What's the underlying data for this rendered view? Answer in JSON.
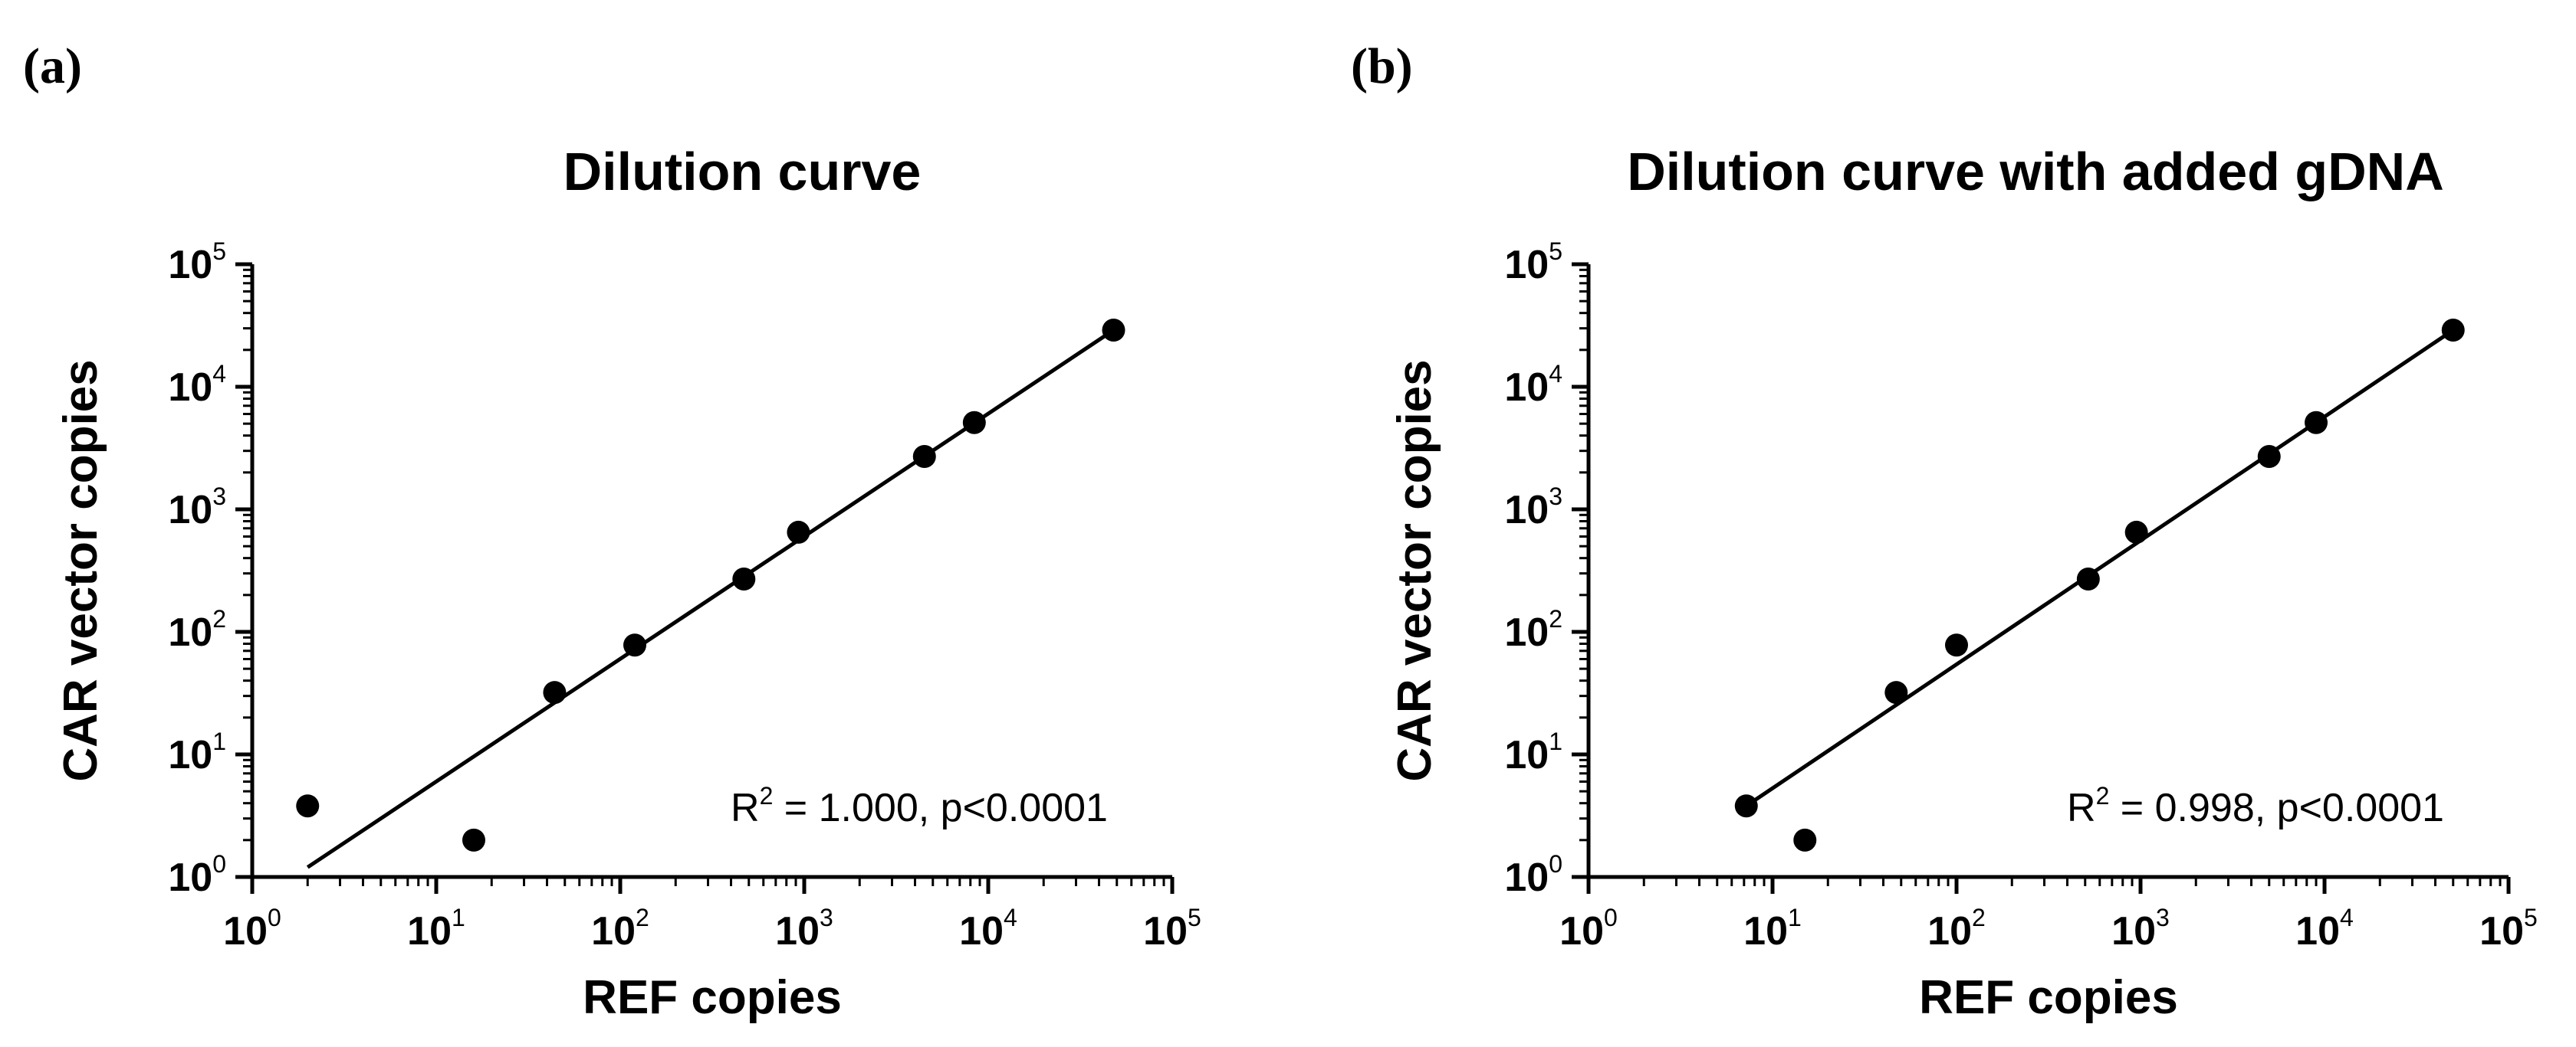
{
  "panels": [
    {
      "label": "(a)"
    },
    {
      "label": "(b)"
    }
  ],
  "chart_data": [
    {
      "type": "scatter",
      "title": "Dilution curve",
      "xlabel": "REF copies",
      "ylabel": "CAR vector copies",
      "xscale": "log10",
      "yscale": "log10",
      "xlim": [
        1,
        100000
      ],
      "ylim": [
        1,
        100000
      ],
      "tick_base": "10",
      "x_tick_exponents": [
        "0",
        "1",
        "2",
        "3",
        "4",
        "5"
      ],
      "y_tick_exponents": [
        "0",
        "1",
        "2",
        "3",
        "4",
        "5"
      ],
      "points": {
        "x": [
          2,
          16,
          44,
          120,
          470,
          930,
          4500,
          8400,
          48000
        ],
        "y": [
          3.8,
          2,
          32,
          78,
          270,
          650,
          2700,
          5100,
          29000
        ]
      },
      "fit_line": {
        "x": [
          2,
          48000
        ],
        "y": [
          1.2,
          29000
        ]
      },
      "annotation": {
        "pre": "R",
        "sup": "2",
        "post": " = 1.000, p<0.0001"
      }
    },
    {
      "type": "scatter",
      "title": "Dilution curve with added gDNA",
      "xlabel": "REF copies",
      "ylabel": "CAR vector copies",
      "xscale": "log10",
      "yscale": "log10",
      "xlim": [
        1,
        100000
      ],
      "ylim": [
        1,
        100000
      ],
      "tick_base": "10",
      "x_tick_exponents": [
        "0",
        "1",
        "2",
        "3",
        "4",
        "5"
      ],
      "y_tick_exponents": [
        "0",
        "1",
        "2",
        "3",
        "4",
        "5"
      ],
      "points": {
        "x": [
          7.2,
          15,
          47,
          100,
          520,
          950,
          5000,
          9000,
          50000
        ],
        "y": [
          3.8,
          2,
          32,
          78,
          270,
          650,
          2700,
          5100,
          29000
        ]
      },
      "fit_line": {
        "x": [
          7.2,
          50000
        ],
        "y": [
          3.8,
          29000
        ]
      },
      "annotation": {
        "pre": "R",
        "sup": "2",
        "post": " = 0.998, p<0.0001"
      }
    }
  ]
}
